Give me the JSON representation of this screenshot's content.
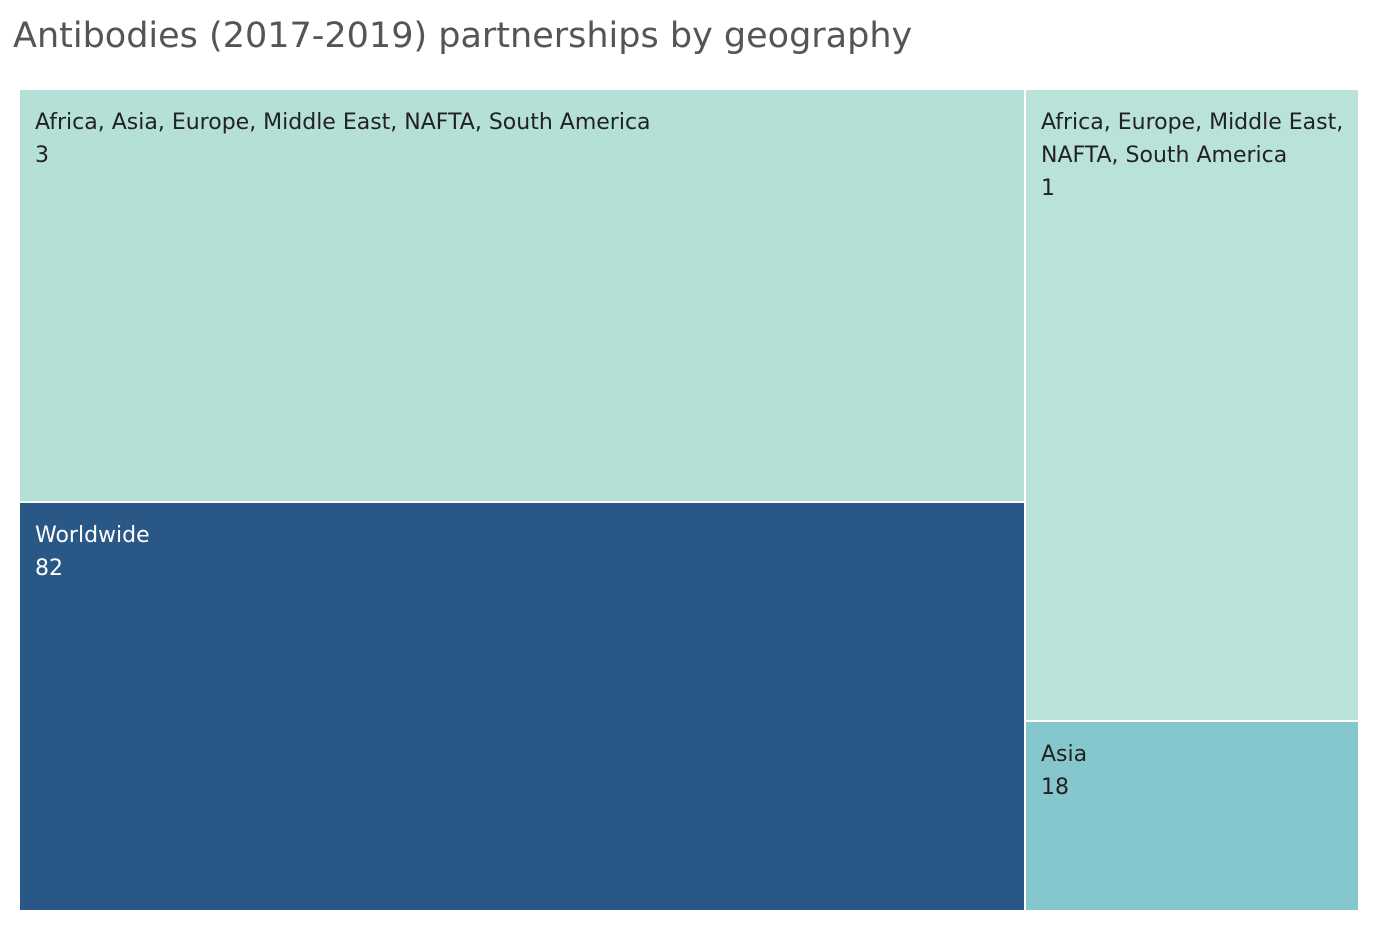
{
  "chart_data": {
    "type": "treemap",
    "title": "Antibodies (2017-2019) partnerships by geography",
    "items": [
      {
        "label": "Worldwide",
        "value": 82,
        "color": "#2a5886",
        "text_color": "#ffffff"
      },
      {
        "label": "Africa, Asia, Europe, Middle East, NAFTA, South America",
        "value": 3,
        "color": "#b5e0d7",
        "text_color": "#222222"
      },
      {
        "label": "Africa, Europe, Middle East, NAFTA, South America",
        "value": 1,
        "color": "#b9e3d9",
        "text_color": "#222222"
      },
      {
        "label": "Asia",
        "value": 18,
        "color": "#85c7cd",
        "text_color": "#222222"
      }
    ]
  }
}
